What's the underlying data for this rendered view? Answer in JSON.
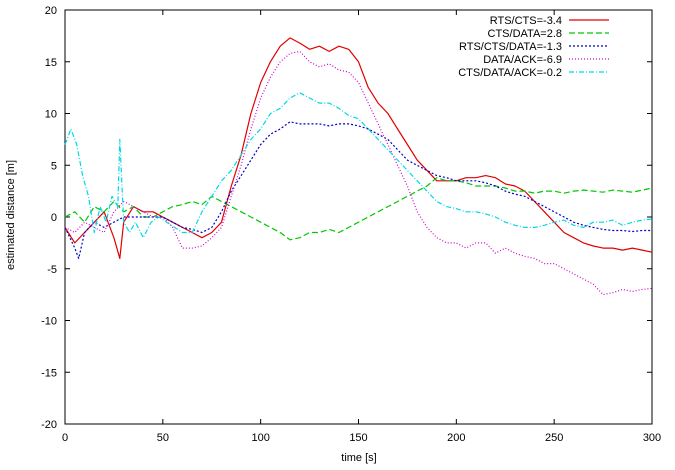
{
  "chart_data": {
    "type": "line",
    "title": "",
    "xlabel": "time [s]",
    "ylabel": "estimated distance [m]",
    "xlim": [
      0,
      300
    ],
    "ylim": [
      -20,
      20
    ],
    "xticks": [
      0,
      50,
      100,
      150,
      200,
      250,
      300
    ],
    "yticks": [
      -20,
      -15,
      -10,
      -5,
      0,
      5,
      10,
      15,
      20
    ],
    "grid": false,
    "legend_position": "top-right",
    "series": [
      {
        "name": "RTS/CTS=-3.4",
        "color": "#e00000",
        "dash": "solid",
        "points": [
          [
            0,
            -1.0
          ],
          [
            5,
            -2.5
          ],
          [
            10,
            -1.5
          ],
          [
            15,
            -0.5
          ],
          [
            20,
            0.5
          ],
          [
            25,
            -2.0
          ],
          [
            28,
            -4.0
          ],
          [
            30,
            -0.5
          ],
          [
            35,
            1.0
          ],
          [
            40,
            0.5
          ],
          [
            45,
            0.5
          ],
          [
            50,
            0.0
          ],
          [
            55,
            -0.5
          ],
          [
            60,
            -1.0
          ],
          [
            65,
            -1.5
          ],
          [
            70,
            -2.0
          ],
          [
            75,
            -1.5
          ],
          [
            80,
            -0.5
          ],
          [
            85,
            3.0
          ],
          [
            90,
            6.0
          ],
          [
            95,
            10.0
          ],
          [
            100,
            13.0
          ],
          [
            105,
            15.0
          ],
          [
            110,
            16.5
          ],
          [
            115,
            17.3
          ],
          [
            120,
            16.8
          ],
          [
            125,
            16.2
          ],
          [
            130,
            16.5
          ],
          [
            135,
            16.0
          ],
          [
            140,
            16.5
          ],
          [
            145,
            16.2
          ],
          [
            150,
            15.0
          ],
          [
            155,
            12.5
          ],
          [
            160,
            11.0
          ],
          [
            165,
            10.0
          ],
          [
            170,
            8.5
          ],
          [
            175,
            7.0
          ],
          [
            180,
            5.5
          ],
          [
            185,
            4.5
          ],
          [
            190,
            3.5
          ],
          [
            195,
            3.5
          ],
          [
            200,
            3.5
          ],
          [
            205,
            3.8
          ],
          [
            210,
            3.8
          ],
          [
            215,
            4.0
          ],
          [
            220,
            3.8
          ],
          [
            225,
            3.2
          ],
          [
            230,
            3.0
          ],
          [
            235,
            2.5
          ],
          [
            240,
            1.5
          ],
          [
            245,
            0.5
          ],
          [
            250,
            -0.5
          ],
          [
            255,
            -1.5
          ],
          [
            260,
            -2.0
          ],
          [
            265,
            -2.5
          ],
          [
            270,
            -2.8
          ],
          [
            275,
            -3.0
          ],
          [
            280,
            -3.0
          ],
          [
            285,
            -3.2
          ],
          [
            290,
            -3.0
          ],
          [
            295,
            -3.2
          ],
          [
            300,
            -3.4
          ]
        ]
      },
      {
        "name": "CTS/DATA=2.8",
        "color": "#00c800",
        "dash": "6,3",
        "points": [
          [
            0,
            0.0
          ],
          [
            5,
            0.5
          ],
          [
            10,
            -0.5
          ],
          [
            15,
            1.0
          ],
          [
            20,
            0.5
          ],
          [
            25,
            1.5
          ],
          [
            30,
            0.5
          ],
          [
            35,
            1.0
          ],
          [
            40,
            0.0
          ],
          [
            45,
            0.0
          ],
          [
            50,
            0.5
          ],
          [
            55,
            1.0
          ],
          [
            60,
            1.2
          ],
          [
            65,
            1.5
          ],
          [
            70,
            1.2
          ],
          [
            75,
            2.0
          ],
          [
            80,
            1.5
          ],
          [
            85,
            1.0
          ],
          [
            90,
            0.5
          ],
          [
            95,
            0.0
          ],
          [
            100,
            -0.5
          ],
          [
            105,
            -1.0
          ],
          [
            110,
            -1.5
          ],
          [
            115,
            -2.2
          ],
          [
            120,
            -2.0
          ],
          [
            125,
            -1.5
          ],
          [
            130,
            -1.5
          ],
          [
            135,
            -1.2
          ],
          [
            140,
            -1.5
          ],
          [
            145,
            -1.0
          ],
          [
            150,
            -0.5
          ],
          [
            155,
            0.0
          ],
          [
            160,
            0.5
          ],
          [
            165,
            1.0
          ],
          [
            170,
            1.5
          ],
          [
            175,
            2.0
          ],
          [
            180,
            2.5
          ],
          [
            185,
            3.0
          ],
          [
            190,
            3.8
          ],
          [
            195,
            3.5
          ],
          [
            200,
            3.5
          ],
          [
            205,
            3.3
          ],
          [
            210,
            3.0
          ],
          [
            215,
            3.0
          ],
          [
            220,
            3.0
          ],
          [
            225,
            2.8
          ],
          [
            230,
            2.5
          ],
          [
            235,
            2.5
          ],
          [
            240,
            2.3
          ],
          [
            245,
            2.5
          ],
          [
            250,
            2.5
          ],
          [
            255,
            2.3
          ],
          [
            260,
            2.5
          ],
          [
            265,
            2.6
          ],
          [
            270,
            2.5
          ],
          [
            275,
            2.4
          ],
          [
            280,
            2.6
          ],
          [
            285,
            2.5
          ],
          [
            290,
            2.4
          ],
          [
            295,
            2.6
          ],
          [
            300,
            2.8
          ]
        ]
      },
      {
        "name": "RTS/CTS/DATA=-1.3",
        "color": "#0000c8",
        "dash": "2,2",
        "points": [
          [
            0,
            -1.0
          ],
          [
            5,
            -3.0
          ],
          [
            7,
            -4.0
          ],
          [
            10,
            -1.5
          ],
          [
            15,
            -0.5
          ],
          [
            20,
            -1.0
          ],
          [
            25,
            -0.5
          ],
          [
            30,
            0.0
          ],
          [
            35,
            0.0
          ],
          [
            40,
            0.0
          ],
          [
            45,
            0.0
          ],
          [
            50,
            0.0
          ],
          [
            55,
            -0.5
          ],
          [
            60,
            -1.0
          ],
          [
            65,
            -1.2
          ],
          [
            70,
            -1.5
          ],
          [
            75,
            -1.0
          ],
          [
            80,
            0.5
          ],
          [
            85,
            2.5
          ],
          [
            90,
            4.0
          ],
          [
            95,
            5.5
          ],
          [
            100,
            7.0
          ],
          [
            105,
            8.0
          ],
          [
            110,
            8.5
          ],
          [
            115,
            9.2
          ],
          [
            120,
            9.0
          ],
          [
            125,
            9.0
          ],
          [
            130,
            9.0
          ],
          [
            135,
            8.8
          ],
          [
            140,
            9.0
          ],
          [
            145,
            9.0
          ],
          [
            150,
            8.8
          ],
          [
            155,
            8.5
          ],
          [
            160,
            8.0
          ],
          [
            165,
            7.5
          ],
          [
            170,
            6.5
          ],
          [
            175,
            5.5
          ],
          [
            180,
            5.0
          ],
          [
            185,
            4.5
          ],
          [
            190,
            4.0
          ],
          [
            195,
            3.8
          ],
          [
            200,
            3.5
          ],
          [
            205,
            3.5
          ],
          [
            210,
            3.5
          ],
          [
            215,
            3.3
          ],
          [
            220,
            3.0
          ],
          [
            225,
            2.5
          ],
          [
            230,
            2.2
          ],
          [
            235,
            2.0
          ],
          [
            240,
            1.5
          ],
          [
            245,
            1.0
          ],
          [
            250,
            0.5
          ],
          [
            255,
            0.0
          ],
          [
            260,
            -0.5
          ],
          [
            265,
            -0.8
          ],
          [
            270,
            -1.0
          ],
          [
            275,
            -1.2
          ],
          [
            280,
            -1.3
          ],
          [
            285,
            -1.3
          ],
          [
            290,
            -1.4
          ],
          [
            295,
            -1.3
          ],
          [
            300,
            -1.3
          ]
        ]
      },
      {
        "name": "DATA/ACK=-6.9",
        "color": "#d000d0",
        "dash": "1,2",
        "points": [
          [
            0,
            -1.0
          ],
          [
            5,
            -1.5
          ],
          [
            10,
            -0.5
          ],
          [
            15,
            -1.0
          ],
          [
            20,
            -1.5
          ],
          [
            25,
            0.5
          ],
          [
            30,
            1.5
          ],
          [
            35,
            1.0
          ],
          [
            40,
            0.5
          ],
          [
            45,
            0.0
          ],
          [
            50,
            0.0
          ],
          [
            55,
            -1.0
          ],
          [
            60,
            -3.0
          ],
          [
            65,
            -3.0
          ],
          [
            70,
            -2.8
          ],
          [
            75,
            -2.0
          ],
          [
            80,
            -1.0
          ],
          [
            85,
            2.0
          ],
          [
            90,
            5.0
          ],
          [
            95,
            8.5
          ],
          [
            100,
            11.5
          ],
          [
            105,
            13.5
          ],
          [
            110,
            15.0
          ],
          [
            115,
            15.8
          ],
          [
            120,
            16.0
          ],
          [
            125,
            15.0
          ],
          [
            130,
            14.5
          ],
          [
            135,
            14.8
          ],
          [
            140,
            14.2
          ],
          [
            145,
            14.0
          ],
          [
            150,
            13.0
          ],
          [
            155,
            11.0
          ],
          [
            160,
            9.0
          ],
          [
            165,
            7.0
          ],
          [
            170,
            5.0
          ],
          [
            175,
            3.0
          ],
          [
            180,
            0.5
          ],
          [
            185,
            -1.0
          ],
          [
            190,
            -2.0
          ],
          [
            195,
            -2.5
          ],
          [
            200,
            -2.5
          ],
          [
            205,
            -3.0
          ],
          [
            210,
            -2.5
          ],
          [
            215,
            -2.5
          ],
          [
            220,
            -3.5
          ],
          [
            225,
            -3.0
          ],
          [
            230,
            -3.5
          ],
          [
            235,
            -3.8
          ],
          [
            240,
            -4.0
          ],
          [
            245,
            -4.5
          ],
          [
            250,
            -4.5
          ],
          [
            255,
            -5.0
          ],
          [
            260,
            -5.5
          ],
          [
            265,
            -6.0
          ],
          [
            270,
            -6.5
          ],
          [
            275,
            -7.5
          ],
          [
            280,
            -7.3
          ],
          [
            285,
            -7.0
          ],
          [
            290,
            -7.2
          ],
          [
            295,
            -7.0
          ],
          [
            300,
            -6.9
          ]
        ]
      },
      {
        "name": "CTS/DATA/ACK=-0.2",
        "color": "#00d8e8",
        "dash": "5,2,1,2",
        "points": [
          [
            0,
            7.0
          ],
          [
            3,
            8.5
          ],
          [
            6,
            7.0
          ],
          [
            9,
            4.0
          ],
          [
            12,
            2.0
          ],
          [
            15,
            -1.5
          ],
          [
            18,
            1.0
          ],
          [
            21,
            -0.5
          ],
          [
            24,
            2.0
          ],
          [
            27,
            1.0
          ],
          [
            28,
            7.5
          ],
          [
            30,
            -0.5
          ],
          [
            33,
            -1.5
          ],
          [
            36,
            -0.5
          ],
          [
            40,
            -2.0
          ],
          [
            44,
            -0.5
          ],
          [
            48,
            0.0
          ],
          [
            52,
            -0.5
          ],
          [
            56,
            -1.0
          ],
          [
            60,
            -1.5
          ],
          [
            65,
            -1.5
          ],
          [
            70,
            0.5
          ],
          [
            75,
            2.0
          ],
          [
            80,
            3.5
          ],
          [
            85,
            4.5
          ],
          [
            90,
            6.0
          ],
          [
            95,
            7.5
          ],
          [
            100,
            8.5
          ],
          [
            105,
            10.0
          ],
          [
            110,
            10.5
          ],
          [
            115,
            11.5
          ],
          [
            120,
            12.0
          ],
          [
            125,
            11.5
          ],
          [
            130,
            11.0
          ],
          [
            135,
            11.0
          ],
          [
            140,
            10.5
          ],
          [
            145,
            9.8
          ],
          [
            150,
            9.5
          ],
          [
            155,
            8.5
          ],
          [
            160,
            7.5
          ],
          [
            165,
            6.5
          ],
          [
            170,
            5.5
          ],
          [
            175,
            4.5
          ],
          [
            180,
            3.5
          ],
          [
            185,
            2.5
          ],
          [
            190,
            1.5
          ],
          [
            195,
            1.0
          ],
          [
            200,
            0.8
          ],
          [
            205,
            0.5
          ],
          [
            210,
            0.5
          ],
          [
            215,
            0.3
          ],
          [
            220,
            0.0
          ],
          [
            225,
            -0.5
          ],
          [
            230,
            -0.8
          ],
          [
            235,
            -1.0
          ],
          [
            240,
            -1.0
          ],
          [
            245,
            -0.8
          ],
          [
            250,
            -0.5
          ],
          [
            255,
            -0.3
          ],
          [
            260,
            -0.8
          ],
          [
            265,
            -1.0
          ],
          [
            270,
            -0.5
          ],
          [
            275,
            -0.5
          ],
          [
            280,
            -0.3
          ],
          [
            285,
            -0.8
          ],
          [
            290,
            -0.5
          ],
          [
            295,
            -0.3
          ],
          [
            300,
            -0.2
          ]
        ]
      }
    ]
  }
}
